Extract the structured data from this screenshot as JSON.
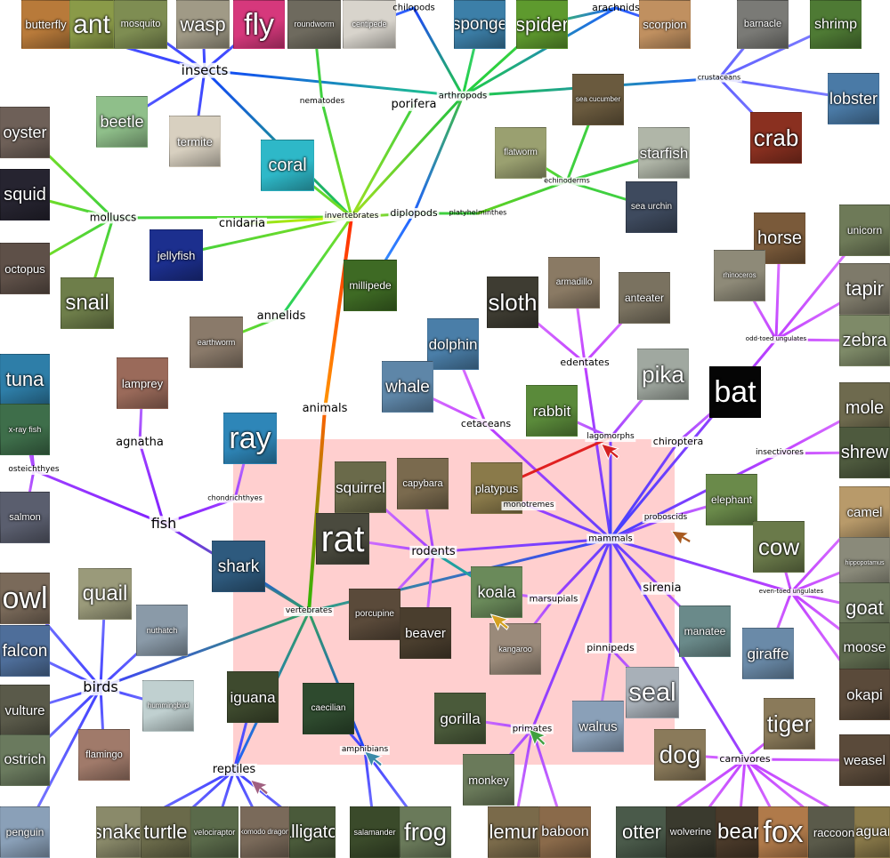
{
  "title": "animals",
  "colors": {
    "background": "#ffffff",
    "highlight": "#ffcfcf"
  },
  "categories": [
    {
      "key": "animals",
      "label": "animals"
    },
    {
      "key": "invertebrates",
      "label": "invertebrates"
    },
    {
      "key": "vertebrates",
      "label": "vertebrates"
    },
    {
      "key": "insects",
      "label": "insects"
    },
    {
      "key": "nematodes",
      "label": "nematodes"
    },
    {
      "key": "porifera",
      "label": "porifera"
    },
    {
      "key": "arthropods",
      "label": "arthropods"
    },
    {
      "key": "chilopods",
      "label": "chilopods"
    },
    {
      "key": "arachnids",
      "label": "arachnids"
    },
    {
      "key": "crustaceans",
      "label": "crustaceans"
    },
    {
      "key": "echinoderms",
      "label": "echinoderms"
    },
    {
      "key": "molluscs",
      "label": "molluscs"
    },
    {
      "key": "cnidaria",
      "label": "cnidaria"
    },
    {
      "key": "diplopods",
      "label": "diplopods"
    },
    {
      "key": "platyhelminthes",
      "label": "platyhelminthes"
    },
    {
      "key": "annelids",
      "label": "annelids"
    },
    {
      "key": "mammals",
      "label": "mammals"
    },
    {
      "key": "edentates",
      "label": "edentates"
    },
    {
      "key": "cetaceans",
      "label": "cetaceans"
    },
    {
      "key": "lagomorphs",
      "label": "lagomorphs"
    },
    {
      "key": "chiroptera",
      "label": "chiroptera"
    },
    {
      "key": "odd_toed",
      "label": "odd-toed ungulates"
    },
    {
      "key": "insectivores",
      "label": "insectivores"
    },
    {
      "key": "monotremes",
      "label": "monotremes"
    },
    {
      "key": "proboscids",
      "label": "proboscids"
    },
    {
      "key": "rodents",
      "label": "rodents"
    },
    {
      "key": "marsupials",
      "label": "marsupials"
    },
    {
      "key": "sirenia",
      "label": "sirenia"
    },
    {
      "key": "even_toed",
      "label": "even-toed ungulates"
    },
    {
      "key": "pinnipeds",
      "label": "pinnipeds"
    },
    {
      "key": "primates",
      "label": "primates"
    },
    {
      "key": "carnivores",
      "label": "carnivores"
    },
    {
      "key": "fish",
      "label": "fish"
    },
    {
      "key": "agnatha",
      "label": "agnatha"
    },
    {
      "key": "osteichthyes",
      "label": "osteichthyes"
    },
    {
      "key": "chondrichthyes",
      "label": "chondrichthyes"
    },
    {
      "key": "birds",
      "label": "birds"
    },
    {
      "key": "reptiles",
      "label": "reptiles"
    },
    {
      "key": "amphibians",
      "label": "amphibians"
    }
  ],
  "animals": [
    {
      "key": "butterfly",
      "label": "butterfly",
      "color": "#b87a3a"
    },
    {
      "key": "ant",
      "label": "ant",
      "color": "#8a9a48"
    },
    {
      "key": "mosquito",
      "label": "mosquito",
      "color": "#7e8d52"
    },
    {
      "key": "wasp",
      "label": "wasp",
      "color": "#a09a86"
    },
    {
      "key": "fly",
      "label": "fly",
      "color": "#d6387c"
    },
    {
      "key": "roundworm",
      "label": "roundworm",
      "color": "#6e6a5e"
    },
    {
      "key": "centipede",
      "label": "centipede",
      "color": "#d8d4cc"
    },
    {
      "key": "sponge",
      "label": "sponge",
      "color": "#3c7fa8"
    },
    {
      "key": "spider",
      "label": "spider",
      "color": "#5e9a2e"
    },
    {
      "key": "scorpion",
      "label": "scorpion",
      "color": "#c09060"
    },
    {
      "key": "barnacle",
      "label": "barnacle",
      "color": "#7a7a76"
    },
    {
      "key": "shrimp",
      "label": "shrimp",
      "color": "#4e7a34"
    },
    {
      "key": "lobster",
      "label": "lobster",
      "color": "#4a7aa6"
    },
    {
      "key": "crab",
      "label": "crab",
      "color": "#8a3020"
    },
    {
      "key": "beetle",
      "label": "beetle",
      "color": "#8fbf8a"
    },
    {
      "key": "termite",
      "label": "termite",
      "color": "#d8d0c0"
    },
    {
      "key": "sea_cucumber",
      "label": "sea cucumber",
      "color": "#6a5a3e"
    },
    {
      "key": "flatworm",
      "label": "flatworm",
      "color": "#9aa070"
    },
    {
      "key": "starfish",
      "label": "starfish",
      "color": "#b0b6a8"
    },
    {
      "key": "sea_urchin",
      "label": "sea urchin",
      "color": "#3e4a5e"
    },
    {
      "key": "oyster",
      "label": "oyster",
      "color": "#6e6058"
    },
    {
      "key": "squid",
      "label": "squid",
      "color": "#262430"
    },
    {
      "key": "octopus",
      "label": "octopus",
      "color": "#5e5048"
    },
    {
      "key": "snail",
      "label": "snail",
      "color": "#6e7e4a"
    },
    {
      "key": "coral",
      "label": "coral",
      "color": "#2eb8c8"
    },
    {
      "key": "jellyfish",
      "label": "jellyfish",
      "color": "#1c2f8e"
    },
    {
      "key": "millipede",
      "label": "millipede",
      "color": "#3e6a24"
    },
    {
      "key": "earthworm",
      "label": "earthworm",
      "color": "#8a7a6a"
    },
    {
      "key": "sloth",
      "label": "sloth",
      "color": "#3e3c32"
    },
    {
      "key": "armadillo",
      "label": "armadillo",
      "color": "#8a7a64"
    },
    {
      "key": "anteater",
      "label": "anteater",
      "color": "#7a7260"
    },
    {
      "key": "horse",
      "label": "horse",
      "color": "#7a5a3a"
    },
    {
      "key": "rhinoceros",
      "label": "rhinoceros",
      "color": "#8e8a78"
    },
    {
      "key": "unicorn",
      "label": "unicorn",
      "color": "#6e7a58"
    },
    {
      "key": "tapir",
      "label": "tapir",
      "color": "#7e7a6a"
    },
    {
      "key": "zebra",
      "label": "zebra",
      "color": "#7e8a68"
    },
    {
      "key": "dolphin",
      "label": "dolphin",
      "color": "#4a7ea8"
    },
    {
      "key": "whale",
      "label": "whale",
      "color": "#5e86a8"
    },
    {
      "key": "lamprey",
      "label": "lamprey",
      "color": "#9a6a5a"
    },
    {
      "key": "rabbit",
      "label": "rabbit",
      "color": "#5a8a3a"
    },
    {
      "key": "pika",
      "label": "pika",
      "color": "#a0a8a0"
    },
    {
      "key": "bat",
      "label": "bat",
      "color": "#050505"
    },
    {
      "key": "mole",
      "label": "mole",
      "color": "#6e6a4e"
    },
    {
      "key": "shrew",
      "label": "shrew",
      "color": "#4e5a3e"
    },
    {
      "key": "tuna",
      "label": "tuna",
      "color": "#2e7ea8"
    },
    {
      "key": "x_ray_fish",
      "label": "x-ray fish",
      "color": "#3e6e4a"
    },
    {
      "key": "salmon",
      "label": "salmon",
      "color": "#5a5e6e"
    },
    {
      "key": "ray",
      "label": "ray",
      "color": "#2e86b8"
    },
    {
      "key": "squirrel",
      "label": "squirrel",
      "color": "#6a6a4a"
    },
    {
      "key": "capybara",
      "label": "capybara",
      "color": "#7a6a4e"
    },
    {
      "key": "platypus",
      "label": "platypus",
      "color": "#8a7a4a"
    },
    {
      "key": "elephant",
      "label": "elephant",
      "color": "#6a8a4a"
    },
    {
      "key": "cow",
      "label": "cow",
      "color": "#6a7a4a"
    },
    {
      "key": "camel",
      "label": "camel",
      "color": "#b89a6a"
    },
    {
      "key": "hippopotamus",
      "label": "hippopotamus",
      "color": "#8a8a7a"
    },
    {
      "key": "goat",
      "label": "goat",
      "color": "#6e7a5e"
    },
    {
      "key": "moose",
      "label": "moose",
      "color": "#5e6a4e"
    },
    {
      "key": "okapi",
      "label": "okapi",
      "color": "#5a4a3a"
    },
    {
      "key": "rat",
      "label": "rat",
      "color": "#4a4a3e"
    },
    {
      "key": "shark",
      "label": "shark",
      "color": "#2e5a7e"
    },
    {
      "key": "koala",
      "label": "koala",
      "color": "#6a8a5a"
    },
    {
      "key": "porcupine",
      "label": "porcupine",
      "color": "#5a4a3a"
    },
    {
      "key": "beaver",
      "label": "beaver",
      "color": "#4a3e2e"
    },
    {
      "key": "kangaroo",
      "label": "kangaroo",
      "color": "#9a8a7a"
    },
    {
      "key": "manatee",
      "label": "manatee",
      "color": "#6a8a8a"
    },
    {
      "key": "giraffe",
      "label": "giraffe",
      "color": "#6a8aa8"
    },
    {
      "key": "owl",
      "label": "owl",
      "color": "#7a6a5a"
    },
    {
      "key": "quail",
      "label": "quail",
      "color": "#9a9a7a"
    },
    {
      "key": "nuthatch",
      "label": "nuthatch",
      "color": "#8a9aa8"
    },
    {
      "key": "falcon",
      "label": "falcon",
      "color": "#4e6e9a"
    },
    {
      "key": "hummingbird",
      "label": "hummingbird",
      "color": "#c0d0d0"
    },
    {
      "key": "vulture",
      "label": "vulture",
      "color": "#5a5a4a"
    },
    {
      "key": "ostrich",
      "label": "ostrich",
      "color": "#6a7a5e"
    },
    {
      "key": "penguin",
      "label": "penguin",
      "color": "#8aa0b8"
    },
    {
      "key": "flamingo",
      "label": "flamingo",
      "color": "#a07a6a"
    },
    {
      "key": "iguana",
      "label": "iguana",
      "color": "#3e4a2e"
    },
    {
      "key": "caecilian",
      "label": "caecilian",
      "color": "#2e4a2e"
    },
    {
      "key": "gorilla",
      "label": "gorilla",
      "color": "#4a5a3a"
    },
    {
      "key": "monkey",
      "label": "monkey",
      "color": "#6a7a5a"
    },
    {
      "key": "walrus",
      "label": "walrus",
      "color": "#8aa0b8"
    },
    {
      "key": "seal",
      "label": "seal",
      "color": "#a8b0b8"
    },
    {
      "key": "tiger",
      "label": "tiger",
      "color": "#8a7a5a"
    },
    {
      "key": "dog",
      "label": "dog",
      "color": "#8a7a5a"
    },
    {
      "key": "weasel",
      "label": "weasel",
      "color": "#5a4a3a"
    },
    {
      "key": "snake",
      "label": "snake",
      "color": "#8a8a6a"
    },
    {
      "key": "turtle",
      "label": "turtle",
      "color": "#6a6a4a"
    },
    {
      "key": "velociraptor",
      "label": "velociraptor",
      "color": "#5a6a4a"
    },
    {
      "key": "komodo_dragon",
      "label": "komodo dragon",
      "color": "#7a6a5a"
    },
    {
      "key": "alligator",
      "label": "alligator",
      "color": "#4a5a3a"
    },
    {
      "key": "salamander",
      "label": "salamander",
      "color": "#3a4a2a"
    },
    {
      "key": "frog",
      "label": "frog",
      "color": "#6a7a5a"
    },
    {
      "key": "lemur",
      "label": "lemur",
      "color": "#7a6a4a"
    },
    {
      "key": "baboon",
      "label": "baboon",
      "color": "#8a6a4a"
    },
    {
      "key": "otter",
      "label": "otter",
      "color": "#4a5a4a"
    },
    {
      "key": "wolverine",
      "label": "wolverine",
      "color": "#3a3a2e"
    },
    {
      "key": "bear",
      "label": "bear",
      "color": "#4a3a2a"
    },
    {
      "key": "fox",
      "label": "fox",
      "color": "#b07a4a"
    },
    {
      "key": "raccoon",
      "label": "raccoon",
      "color": "#5a5a4a"
    },
    {
      "key": "jaguar",
      "label": "jaguar",
      "color": "#8a7a4a"
    }
  ],
  "cursors": [
    {
      "key": "lagomorphs",
      "color": "#d42020"
    },
    {
      "key": "proboscids",
      "color": "#a85a20"
    },
    {
      "key": "koala",
      "color": "#d4a020"
    },
    {
      "key": "primates",
      "color": "#40a040"
    },
    {
      "key": "amphibians",
      "color": "#3a8aa8"
    },
    {
      "key": "reptiles",
      "color": "#a06080"
    }
  ]
}
